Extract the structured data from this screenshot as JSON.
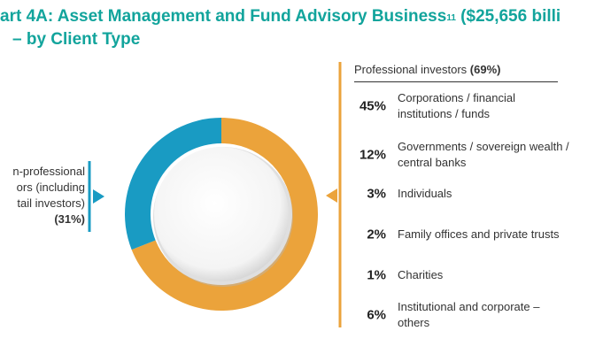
{
  "title": {
    "line1_text": "art 4A: Asset Management and Fund Advisory Business",
    "line1_sup": "11",
    "line1_tail": " ($25,656 billi",
    "line2": "– by Client Type"
  },
  "colors": {
    "title": "#12a49c",
    "professional": "#eba33b",
    "non_professional": "#199bc3"
  },
  "left_label": {
    "line1": "n-professional",
    "line2": "ors (including",
    "line3": "tail investors)",
    "pct": "(31%)"
  },
  "right_header": {
    "text": "Professional investors ",
    "pct": "(69%)"
  },
  "chart_data": {
    "type": "pie",
    "style": "donut",
    "categories": [
      "Professional investors",
      "Non-professional investors (including retail investors)"
    ],
    "values": [
      69,
      31
    ]
  },
  "breakdown": [
    {
      "pct": "45%",
      "label": "Corporations / financial institutions / funds"
    },
    {
      "pct": "12%",
      "label": "Governments / sovereign wealth / central banks"
    },
    {
      "pct": "3%",
      "label": "Individuals"
    },
    {
      "pct": "2%",
      "label": "Family offices and private trusts"
    },
    {
      "pct": "1%",
      "label": "Charities"
    },
    {
      "pct": "6%",
      "label": "Institutional and corporate – others"
    }
  ]
}
